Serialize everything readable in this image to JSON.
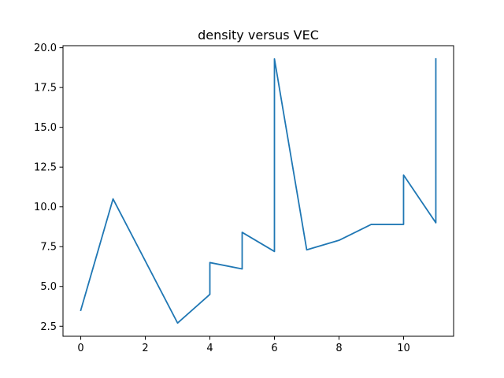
{
  "chart_data": {
    "type": "line",
    "title": "density versus VEC",
    "xlabel": "",
    "ylabel": "",
    "xlim": [
      -0.55,
      11.55
    ],
    "ylim": [
      1.87,
      20.13
    ],
    "x_ticks": [
      0,
      2,
      4,
      6,
      8,
      10
    ],
    "x_tick_labels": [
      "0",
      "2",
      "4",
      "6",
      "8",
      "10"
    ],
    "y_ticks": [
      2.5,
      5.0,
      7.5,
      10.0,
      12.5,
      15.0,
      17.5,
      20.0
    ],
    "y_tick_labels": [
      "2.5",
      "5.0",
      "7.5",
      "10.0",
      "12.5",
      "15.0",
      "17.5",
      "20.0"
    ],
    "grid": false,
    "series": [
      {
        "color": "#1f77b4",
        "x": [
          0,
          1,
          3,
          4,
          4,
          5,
          5,
          6,
          6,
          7,
          8,
          9,
          10,
          10,
          11,
          11
        ],
        "y": [
          3.5,
          10.5,
          2.7,
          4.5,
          6.5,
          6.1,
          8.4,
          7.2,
          19.3,
          7.3,
          7.9,
          8.9,
          8.9,
          12.0,
          9.0,
          19.3
        ]
      }
    ]
  }
}
